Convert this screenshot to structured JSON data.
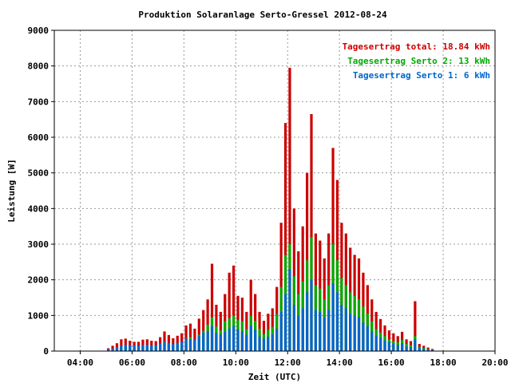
{
  "chart_data": {
    "type": "bar",
    "title": "Produktion Solaranlage Serto-Gressel 2012-08-24",
    "xlabel": "Zeit (UTC)",
    "ylabel": "Leistung [W]",
    "xlim": [
      "03:00",
      "20:00"
    ],
    "ylim": [
      0,
      9000
    ],
    "x_ticks": [
      "04:00",
      "06:00",
      "08:00",
      "10:00",
      "12:00",
      "14:00",
      "16:00",
      "18:00",
      "20:00"
    ],
    "y_ticks": [
      "0",
      "1000",
      "2000",
      "3000",
      "4000",
      "5000",
      "6000",
      "7000",
      "8000",
      "9000"
    ],
    "grid": true,
    "legend_position": "top-right",
    "stacked": true,
    "legend": [
      {
        "label": "Tagesertrag total: 18.84 kWh",
        "color": "#cc0000"
      },
      {
        "label": "Tagesertrag Serto 2: 13 kWh",
        "color": "#00aa00"
      },
      {
        "label": "Tagesertrag Serto 1: 6 kWh",
        "color": "#0066cc"
      }
    ],
    "series": [
      {
        "name": "Serto 1",
        "color": "#0066cc",
        "values": [
          [
            "05:05",
            50
          ],
          [
            "05:15",
            70
          ],
          [
            "05:25",
            100
          ],
          [
            "05:35",
            150
          ],
          [
            "05:45",
            180
          ],
          [
            "05:55",
            170
          ],
          [
            "06:05",
            160
          ],
          [
            "06:15",
            150
          ],
          [
            "06:25",
            170
          ],
          [
            "06:35",
            180
          ],
          [
            "06:45",
            170
          ],
          [
            "06:55",
            160
          ],
          [
            "07:05",
            210
          ],
          [
            "07:15",
            250
          ],
          [
            "07:25",
            230
          ],
          [
            "07:35",
            200
          ],
          [
            "07:45",
            230
          ],
          [
            "07:55",
            260
          ],
          [
            "08:05",
            350
          ],
          [
            "08:15",
            330
          ],
          [
            "08:25",
            320
          ],
          [
            "08:35",
            420
          ],
          [
            "08:45",
            520
          ],
          [
            "08:55",
            560
          ],
          [
            "09:05",
            700
          ],
          [
            "09:15",
            510
          ],
          [
            "09:25",
            460
          ],
          [
            "09:35",
            540
          ],
          [
            "09:45",
            630
          ],
          [
            "09:55",
            700
          ],
          [
            "10:05",
            610
          ],
          [
            "10:15",
            560
          ],
          [
            "10:25",
            460
          ],
          [
            "10:35",
            710
          ],
          [
            "10:45",
            600
          ],
          [
            "10:55",
            410
          ],
          [
            "11:05",
            350
          ],
          [
            "11:15",
            400
          ],
          [
            "11:25",
            470
          ],
          [
            "11:35",
            620
          ],
          [
            "11:45",
            1100
          ],
          [
            "11:55",
            1600
          ],
          [
            "12:05",
            2300
          ],
          [
            "12:15",
            1300
          ],
          [
            "12:25",
            1000
          ],
          [
            "12:35",
            1200
          ],
          [
            "12:45",
            1650
          ],
          [
            "12:55",
            2000
          ],
          [
            "13:05",
            1150
          ],
          [
            "13:15",
            1100
          ],
          [
            "13:25",
            950
          ],
          [
            "13:35",
            1150
          ],
          [
            "13:45",
            1900
          ],
          [
            "13:55",
            1650
          ],
          [
            "14:05",
            1300
          ],
          [
            "14:15",
            1200
          ],
          [
            "14:25",
            1050
          ],
          [
            "14:35",
            1000
          ],
          [
            "14:45",
            950
          ],
          [
            "14:55",
            800
          ],
          [
            "15:05",
            700
          ],
          [
            "15:15",
            550
          ],
          [
            "15:25",
            430
          ],
          [
            "15:35",
            380
          ],
          [
            "15:45",
            300
          ],
          [
            "15:55",
            250
          ],
          [
            "16:05",
            210
          ],
          [
            "16:15",
            170
          ],
          [
            "16:25",
            220
          ],
          [
            "16:35",
            130
          ],
          [
            "16:45",
            110
          ],
          [
            "16:55",
            330
          ],
          [
            "17:05",
            90
          ],
          [
            "17:15",
            70
          ],
          [
            "17:25",
            50
          ],
          [
            "17:35",
            30
          ]
        ]
      },
      {
        "name": "Serto 2",
        "color": "#00aa00",
        "values": [
          [
            "05:05",
            30
          ],
          [
            "05:15",
            70
          ],
          [
            "05:25",
            110
          ],
          [
            "05:35",
            150
          ],
          [
            "05:45",
            150
          ],
          [
            "05:55",
            110
          ],
          [
            "06:05",
            90
          ],
          [
            "06:15",
            100
          ],
          [
            "06:25",
            130
          ],
          [
            "06:35",
            130
          ],
          [
            "06:45",
            110
          ],
          [
            "06:55",
            110
          ],
          [
            "07:05",
            170
          ],
          [
            "07:15",
            260
          ],
          [
            "07:25",
            190
          ],
          [
            "07:35",
            150
          ],
          [
            "07:45",
            190
          ],
          [
            "07:55",
            220
          ],
          [
            "08:05",
            350
          ],
          [
            "08:15",
            390
          ],
          [
            "08:25",
            300
          ],
          [
            "08:35",
            460
          ],
          [
            "08:45",
            570
          ],
          [
            "08:55",
            740
          ],
          [
            "09:05",
            950
          ],
          [
            "09:15",
            690
          ],
          [
            "09:25",
            580
          ],
          [
            "09:35",
            840
          ],
          [
            "09:45",
            920
          ],
          [
            "09:55",
            1000
          ],
          [
            "10:05",
            870
          ],
          [
            "10:15",
            840
          ],
          [
            "10:25",
            620
          ],
          [
            "10:35",
            990
          ],
          [
            "10:45",
            850
          ],
          [
            "10:55",
            630
          ],
          [
            "11:05",
            480
          ],
          [
            "11:15",
            600
          ],
          [
            "11:25",
            680
          ],
          [
            "11:35",
            1030
          ],
          [
            "11:45",
            1800
          ],
          [
            "11:55",
            2700
          ],
          [
            "12:05",
            3000
          ],
          [
            "12:15",
            2100
          ],
          [
            "12:25",
            1600
          ],
          [
            "12:35",
            1950
          ],
          [
            "12:45",
            2550
          ],
          [
            "12:55",
            3200
          ],
          [
            "13:05",
            1850
          ],
          [
            "13:15",
            1750
          ],
          [
            "13:25",
            1450
          ],
          [
            "13:35",
            1850
          ],
          [
            "13:45",
            3000
          ],
          [
            "13:55",
            2550
          ],
          [
            "14:05",
            2050
          ],
          [
            "14:15",
            1850
          ],
          [
            "14:25",
            1650
          ],
          [
            "14:35",
            1550
          ],
          [
            "14:45",
            1450
          ],
          [
            "14:55",
            1250
          ],
          [
            "15:05",
            1050
          ],
          [
            "15:15",
            830
          ],
          [
            "15:25",
            620
          ],
          [
            "15:35",
            520
          ],
          [
            "15:45",
            420
          ],
          [
            "15:55",
            330
          ],
          [
            "16:05",
            280
          ],
          [
            "16:15",
            250
          ],
          [
            "16:25",
            310
          ],
          [
            "16:35",
            200
          ],
          [
            "16:45",
            170
          ],
          [
            "16:55",
            420
          ],
          [
            "17:05",
            120
          ],
          [
            "17:15",
            90
          ],
          [
            "17:25",
            60
          ],
          [
            "17:35",
            30
          ]
        ]
      },
      {
        "name": "Total",
        "color": "#cc0000",
        "values": [
          [
            "05:05",
            80
          ],
          [
            "05:15",
            150
          ],
          [
            "05:25",
            220
          ],
          [
            "05:35",
            330
          ],
          [
            "05:45",
            350
          ],
          [
            "05:55",
            290
          ],
          [
            "06:05",
            260
          ],
          [
            "06:15",
            260
          ],
          [
            "06:25",
            320
          ],
          [
            "06:35",
            330
          ],
          [
            "06:45",
            290
          ],
          [
            "06:55",
            280
          ],
          [
            "07:05",
            390
          ],
          [
            "07:15",
            550
          ],
          [
            "07:25",
            450
          ],
          [
            "07:35",
            360
          ],
          [
            "07:45",
            430
          ],
          [
            "07:55",
            500
          ],
          [
            "08:05",
            720
          ],
          [
            "08:15",
            770
          ],
          [
            "08:25",
            630
          ],
          [
            "08:35",
            910
          ],
          [
            "08:45",
            1150
          ],
          [
            "08:55",
            1450
          ],
          [
            "09:05",
            2450
          ],
          [
            "09:15",
            1300
          ],
          [
            "09:25",
            1100
          ],
          [
            "09:35",
            1600
          ],
          [
            "09:45",
            2200
          ],
          [
            "09:55",
            2400
          ],
          [
            "10:05",
            1550
          ],
          [
            "10:15",
            1500
          ],
          [
            "10:25",
            1100
          ],
          [
            "10:35",
            2000
          ],
          [
            "10:45",
            1600
          ],
          [
            "10:55",
            1100
          ],
          [
            "11:05",
            850
          ],
          [
            "11:15",
            1050
          ],
          [
            "11:25",
            1200
          ],
          [
            "11:35",
            1800
          ],
          [
            "11:45",
            3600
          ],
          [
            "11:55",
            6400
          ],
          [
            "12:05",
            7950
          ],
          [
            "12:15",
            4000
          ],
          [
            "12:25",
            2800
          ],
          [
            "12:35",
            3500
          ],
          [
            "12:45",
            5000
          ],
          [
            "12:55",
            6650
          ],
          [
            "13:05",
            3300
          ],
          [
            "13:15",
            3100
          ],
          [
            "13:25",
            2600
          ],
          [
            "13:35",
            3300
          ],
          [
            "13:45",
            5700
          ],
          [
            "13:55",
            4800
          ],
          [
            "14:05",
            3600
          ],
          [
            "14:15",
            3300
          ],
          [
            "14:25",
            2900
          ],
          [
            "14:35",
            2700
          ],
          [
            "14:45",
            2600
          ],
          [
            "14:55",
            2200
          ],
          [
            "15:05",
            1850
          ],
          [
            "15:15",
            1450
          ],
          [
            "15:25",
            1100
          ],
          [
            "15:35",
            900
          ],
          [
            "15:45",
            720
          ],
          [
            "15:55",
            580
          ],
          [
            "16:05",
            500
          ],
          [
            "16:15",
            420
          ],
          [
            "16:25",
            540
          ],
          [
            "16:35",
            330
          ],
          [
            "16:45",
            280
          ],
          [
            "16:55",
            1400
          ],
          [
            "17:05",
            200
          ],
          [
            "17:15",
            150
          ],
          [
            "17:25",
            100
          ],
          [
            "17:35",
            60
          ]
        ]
      }
    ]
  }
}
